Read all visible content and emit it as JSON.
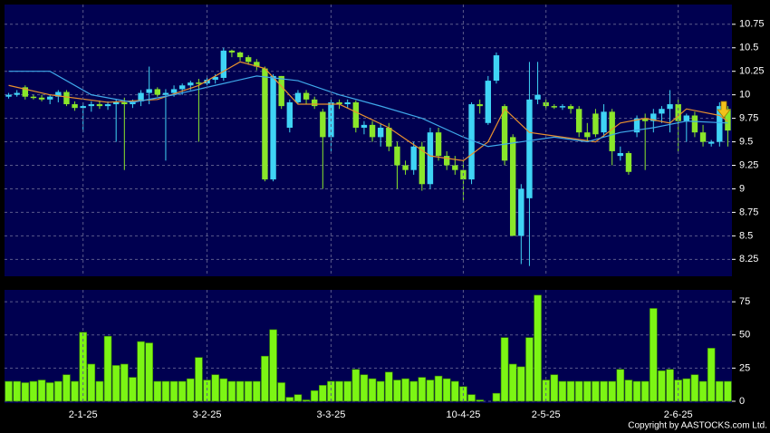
{
  "chart_data": [
    {
      "type": "candlestick",
      "open": [
        9.98,
        10.0,
        10.08,
        9.98,
        9.97,
        9.95,
        9.98,
        10.03,
        9.9,
        9.86,
        9.88,
        9.9,
        9.88,
        9.9,
        9.92,
        9.9,
        9.93,
        10.02,
        10.06,
        10.0,
        10.02,
        10.06,
        10.1,
        10.13,
        10.12,
        10.16,
        10.18,
        10.47,
        10.45,
        10.4,
        10.35,
        10.28,
        9.1,
        10.2,
        9.65,
        9.92,
        10.02,
        9.95,
        9.82,
        9.55,
        9.92,
        9.9,
        9.92,
        9.65,
        9.68,
        9.55,
        9.65,
        9.45,
        9.25,
        9.2,
        9.45,
        9.05,
        9.6,
        9.35,
        9.25,
        9.2,
        9.1,
        9.9,
        9.7,
        10.15,
        9.88,
        9.55,
        8.5,
        8.9,
        9.95,
        9.92,
        9.88,
        9.87,
        9.88,
        9.85,
        9.6,
        9.8,
        9.6,
        9.82,
        9.35,
        9.38,
        9.6,
        9.75,
        9.72,
        9.8,
        9.85,
        9.9,
        9.72,
        9.78,
        9.6,
        9.48,
        9.5,
        9.85
      ],
      "high": [
        10.02,
        10.05,
        10.1,
        10.0,
        10.0,
        10.0,
        10.05,
        10.05,
        9.93,
        9.92,
        9.93,
        9.94,
        9.93,
        9.95,
        9.97,
        9.95,
        10.05,
        10.3,
        10.08,
        10.06,
        10.1,
        10.12,
        10.15,
        10.17,
        10.2,
        10.22,
        10.5,
        10.48,
        10.46,
        10.42,
        10.38,
        10.3,
        10.22,
        10.2,
        9.95,
        10.05,
        10.05,
        9.98,
        9.85,
        9.95,
        9.95,
        9.95,
        9.94,
        9.72,
        9.72,
        9.7,
        9.7,
        9.5,
        9.3,
        9.5,
        9.5,
        9.65,
        9.65,
        9.4,
        9.35,
        9.3,
        9.92,
        9.95,
        10.2,
        10.45,
        9.9,
        9.58,
        9.05,
        10.35,
        10.35,
        9.95,
        9.9,
        9.9,
        9.9,
        9.88,
        9.7,
        9.85,
        9.9,
        9.85,
        9.45,
        9.4,
        9.78,
        9.8,
        9.85,
        9.88,
        10.05,
        9.95,
        9.8,
        9.82,
        9.68,
        9.52,
        9.92,
        9.88
      ],
      "low": [
        9.96,
        9.98,
        9.95,
        9.95,
        9.93,
        9.9,
        9.92,
        9.88,
        9.83,
        9.6,
        9.82,
        9.85,
        9.84,
        9.5,
        9.2,
        9.86,
        9.88,
        9.9,
        9.98,
        9.3,
        9.98,
        10.0,
        10.05,
        9.5,
        10.1,
        10.12,
        10.15,
        10.4,
        10.36,
        10.32,
        10.26,
        9.08,
        9.08,
        9.85,
        9.6,
        9.9,
        9.9,
        9.85,
        9.0,
        9.4,
        9.85,
        9.86,
        9.6,
        9.58,
        9.5,
        9.45,
        9.4,
        9.0,
        9.15,
        9.15,
        8.98,
        9.0,
        9.3,
        9.2,
        9.15,
        8.88,
        9.05,
        9.8,
        9.68,
        10.12,
        9.25,
        8.5,
        8.2,
        8.18,
        9.9,
        9.85,
        9.85,
        9.84,
        9.8,
        9.55,
        9.5,
        9.55,
        9.55,
        9.25,
        9.3,
        9.15,
        9.55,
        9.2,
        9.6,
        9.7,
        9.6,
        9.4,
        9.5,
        9.55,
        9.45,
        9.45,
        9.45,
        9.45
      ],
      "close": [
        10.0,
        10.02,
        9.98,
        9.97,
        9.95,
        9.98,
        10.03,
        9.9,
        9.86,
        9.88,
        9.9,
        9.88,
        9.9,
        9.92,
        9.9,
        9.93,
        10.02,
        10.06,
        10.0,
        10.02,
        10.06,
        10.1,
        10.13,
        10.12,
        10.16,
        10.19,
        10.47,
        10.45,
        10.4,
        10.35,
        10.3,
        9.1,
        10.2,
        9.88,
        9.92,
        10.02,
        9.95,
        9.88,
        9.55,
        9.92,
        9.9,
        9.92,
        9.65,
        9.68,
        9.55,
        9.65,
        9.45,
        9.25,
        9.2,
        9.45,
        9.05,
        9.6,
        9.35,
        9.25,
        9.2,
        9.1,
        9.9,
        9.88,
        10.15,
        10.42,
        9.3,
        8.5,
        9.0,
        9.95,
        10.0,
        9.88,
        9.87,
        9.88,
        9.85,
        9.6,
        9.55,
        9.58,
        9.82,
        9.4,
        9.38,
        9.18,
        9.75,
        9.72,
        9.8,
        9.85,
        9.9,
        9.72,
        9.78,
        9.6,
        9.5,
        9.5,
        9.88,
        9.62
      ],
      "up_color": "#3fd4f5",
      "down_color": "#8ae62a",
      "series": [
        {
          "color": "#e8902e",
          "x": [
            0,
            5,
            12,
            18,
            23,
            28,
            31,
            35,
            40,
            46,
            51,
            55,
            58,
            60,
            63,
            67,
            71,
            74,
            77,
            80,
            82,
            86,
            87
          ],
          "values": [
            10.1,
            10.0,
            9.92,
            9.95,
            10.1,
            10.35,
            10.28,
            9.9,
            9.9,
            9.65,
            9.35,
            9.3,
            9.5,
            9.85,
            9.6,
            9.55,
            9.5,
            9.7,
            9.75,
            9.7,
            9.85,
            9.78,
            9.72
          ]
        },
        {
          "color": "#3fa9ea",
          "x": [
            0,
            5,
            10,
            15,
            20,
            25,
            30,
            35,
            40,
            45,
            50,
            55,
            58,
            62,
            66,
            70,
            74,
            78,
            82,
            87
          ],
          "values": [
            10.25,
            10.25,
            10.0,
            9.92,
            10.0,
            10.1,
            10.2,
            10.15,
            10.0,
            9.88,
            9.75,
            9.55,
            9.45,
            9.5,
            9.55,
            9.5,
            9.6,
            9.65,
            9.72,
            9.7
          ]
        }
      ],
      "ylim": [
        8.07,
        10.96
      ],
      "yticks": [
        8.25,
        8.5,
        8.75,
        9,
        9.25,
        9.5,
        9.75,
        10,
        10.25,
        10.5,
        10.75
      ],
      "grid": true
    },
    {
      "type": "bar",
      "categories": [
        null,
        null,
        null,
        null,
        null,
        null,
        null,
        null,
        null,
        "2-1-25",
        null,
        null,
        null,
        null,
        null,
        null,
        null,
        null,
        null,
        null,
        null,
        null,
        null,
        null,
        "3-2-25",
        null,
        null,
        null,
        null,
        null,
        null,
        null,
        null,
        null,
        null,
        null,
        null,
        null,
        null,
        "3-3-25",
        null,
        null,
        null,
        null,
        null,
        null,
        null,
        null,
        null,
        null,
        null,
        null,
        null,
        null,
        null,
        "10-4-25",
        null,
        null,
        null,
        null,
        null,
        null,
        null,
        null,
        null,
        "2-5-25",
        null,
        null,
        null,
        null,
        null,
        null,
        null,
        null,
        null,
        null,
        null,
        null,
        null,
        null,
        null,
        "2-6-25",
        null,
        null,
        null,
        null,
        null,
        null
      ],
      "values": [
        15,
        15,
        14,
        15,
        16,
        14,
        15,
        20,
        15,
        52,
        28,
        15,
        49,
        27,
        28,
        18,
        45,
        44,
        15,
        15,
        15,
        15,
        17,
        33,
        16,
        20,
        17,
        15,
        15,
        15,
        15,
        34,
        54,
        14,
        3,
        5,
        1,
        8,
        12,
        15,
        15,
        15,
        24,
        20,
        17,
        15,
        22,
        16,
        17,
        15,
        18,
        16,
        19,
        17,
        15,
        11,
        5,
        1,
        0,
        6,
        48,
        28,
        26,
        48,
        80,
        16,
        20,
        15,
        15,
        15,
        15,
        15,
        15,
        15,
        24,
        16,
        15,
        15,
        70,
        23,
        24,
        16,
        17,
        20,
        15,
        40,
        15,
        15
      ],
      "color": "#7cf514",
      "ylim": [
        -1.4,
        84
      ],
      "yticks": [
        0,
        25,
        50,
        75
      ],
      "grid": true,
      "footer": "Copyright by AASTOCKS.com Ltd."
    }
  ]
}
